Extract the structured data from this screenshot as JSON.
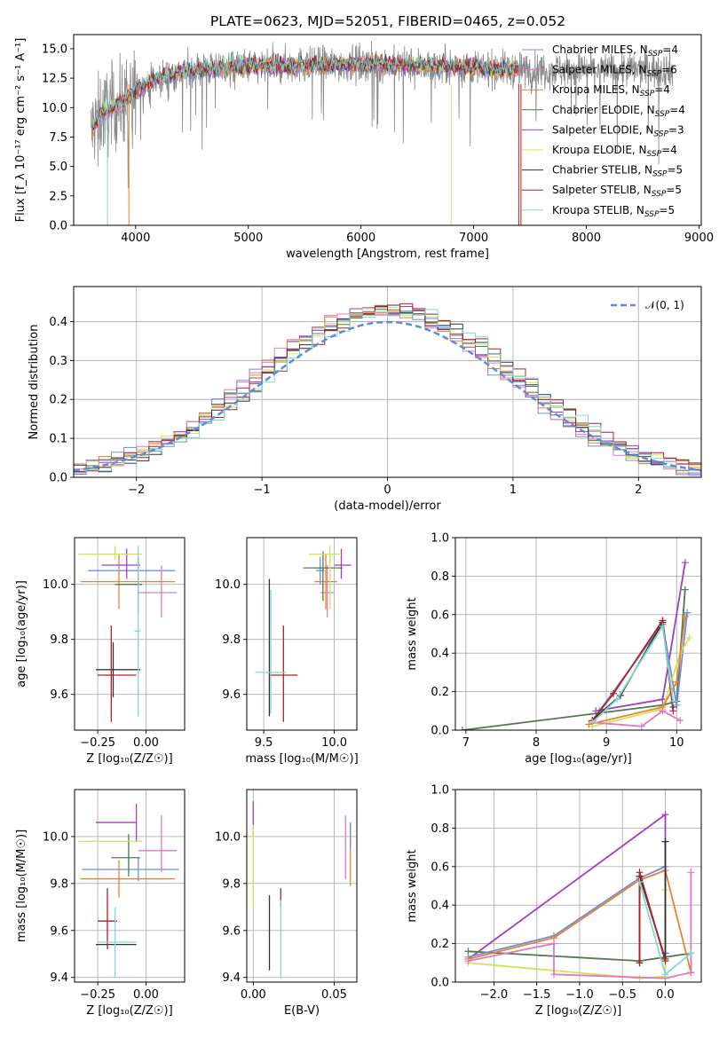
{
  "title": "PLATE=0623, MJD=52051, FIBERID=0465, z=0.052",
  "colors": {
    "Chabrier MILES": "#6b8fe0",
    "Salpeter MILES": "#e377c2",
    "Kroupa MILES": "#e8822e",
    "Chabrier ELODIE": "#4e7a4e",
    "Salpeter ELODIE": "#a23dc4",
    "Kroupa ELODIE": "#d4e05a",
    "Chabrier STELIB": "#333333",
    "Salpeter STELIB": "#b02020",
    "Kroupa STELIB": "#7fd8d8"
  },
  "legend": [
    {
      "label": "Chabrier MILES, N",
      "sub": "SSP",
      "eq": "=4",
      "series": "Chabrier MILES"
    },
    {
      "label": "Salpeter MILES, N",
      "sub": "SSP",
      "eq": "=6",
      "series": "Salpeter MILES"
    },
    {
      "label": "Kroupa MILES, N",
      "sub": "SSP",
      "eq": "=4",
      "series": "Kroupa MILES"
    },
    {
      "label": "Chabrier ELODIE, N",
      "sub": "SSP",
      "eq": "=4",
      "series": "Chabrier ELODIE"
    },
    {
      "label": "Salpeter ELODIE, N",
      "sub": "SSP",
      "eq": "=3",
      "series": "Salpeter ELODIE"
    },
    {
      "label": "Kroupa ELODIE, N",
      "sub": "SSP",
      "eq": "=4",
      "series": "Kroupa ELODIE"
    },
    {
      "label": "Chabrier STELIB, N",
      "sub": "SSP",
      "eq": "=5",
      "series": "Chabrier STELIB"
    },
    {
      "label": "Salpeter STELIB, N",
      "sub": "SSP",
      "eq": "=5",
      "series": "Salpeter STELIB"
    },
    {
      "label": "Kroupa STELIB, N",
      "sub": "SSP",
      "eq": "=5",
      "series": "Kroupa STELIB"
    }
  ],
  "chart_data": [
    {
      "id": "spectrum",
      "type": "line",
      "xlabel": "wavelength [Angstrom, rest frame]",
      "ylabel": "Flux [f_λ 10⁻¹⁷ erg cm⁻² s⁻¹ A⁻¹]",
      "xlim": [
        3450,
        9020
      ],
      "ylim": [
        0,
        16.2
      ],
      "xticks": [
        4000,
        5000,
        6000,
        7000,
        8000,
        9000
      ],
      "yticks": [
        0.0,
        2.5,
        5.0,
        7.5,
        10.0,
        12.5,
        15.0
      ],
      "data_wavelength_range": [
        3600,
        8770
      ],
      "continuum": {
        "x": [
          3600,
          3700,
          3800,
          3900,
          4000,
          4200,
          4500,
          5000,
          5500,
          6000,
          6500,
          7000,
          7400
        ],
        "y": [
          8.0,
          9.5,
          10.0,
          10.5,
          11.5,
          12.5,
          13.2,
          13.5,
          13.6,
          13.7,
          13.6,
          13.4,
          13.2
        ]
      }
    },
    {
      "id": "residuals",
      "type": "histogram",
      "xlabel": "(data-model)/error",
      "ylabel": "Normed distribution",
      "xlim": [
        -2.5,
        2.5
      ],
      "ylim": [
        0,
        0.49
      ],
      "xticks": [
        -2,
        -1,
        0,
        1,
        2
      ],
      "yticks": [
        0.0,
        0.1,
        0.2,
        0.3,
        0.4
      ],
      "reference_label": "𝒩(0, 1)",
      "bin_width": 0.1
    },
    {
      "id": "age_vs_Z",
      "type": "errorbar",
      "xlabel": "Z [log₁₀(Z/Z☉)]",
      "ylabel": "age  [log₁₀(age/yr)]",
      "xlim": [
        -0.37,
        0.2
      ],
      "ylim": [
        9.47,
        10.17
      ],
      "xticks": [
        -0.25,
        0.0
      ],
      "xticklabels": [
        "−0.25",
        "0.00"
      ],
      "yticks": [
        9.6,
        9.8,
        10.0
      ],
      "yticklabels": [
        "9.6",
        "9.8",
        "10.0"
      ],
      "points": [
        {
          "s": "Chabrier MILES",
          "x": -0.04,
          "xerr": [
            0.26,
            0.19
          ],
          "y": 10.05,
          "yerr": [
            0.05,
            0.05
          ]
        },
        {
          "s": "Salpeter MILES",
          "x": 0.08,
          "xerr": [
            0.12,
            0.08
          ],
          "y": 9.97,
          "yerr": [
            0.09,
            0.1
          ]
        },
        {
          "s": "Kroupa MILES",
          "x": -0.14,
          "xerr": [
            0.2,
            0.29
          ],
          "y": 10.01,
          "yerr": [
            0.1,
            0.1
          ]
        },
        {
          "s": "Chabrier ELODIE",
          "x": -0.04,
          "xerr": [
            0.12,
            0.02
          ],
          "y": 10.0,
          "yerr": [
            0.1,
            0.1
          ]
        },
        {
          "s": "Salpeter ELODIE",
          "x": -0.1,
          "xerr": [
            0.13,
            0.07
          ],
          "y": 10.07,
          "yerr": [
            0.05,
            0.06
          ]
        },
        {
          "s": "Kroupa ELODIE",
          "x": -0.16,
          "xerr": [
            0.19,
            0.14
          ],
          "y": 10.11,
          "yerr": [
            0.02,
            0.03
          ]
        },
        {
          "s": "Chabrier STELIB",
          "x": -0.17,
          "xerr": [
            0.09,
            0.14
          ],
          "y": 9.69,
          "yerr": [
            0.1,
            0.1
          ]
        },
        {
          "s": "Salpeter STELIB",
          "x": -0.18,
          "xerr": [
            0.07,
            0.13
          ],
          "y": 9.67,
          "yerr": [
            0.17,
            0.18
          ]
        },
        {
          "s": "Kroupa STELIB",
          "x": -0.04,
          "xerr": [
            0.02,
            0.01
          ],
          "y": 9.83,
          "yerr": [
            0.31,
            0.31
          ]
        }
      ]
    },
    {
      "id": "age_vs_mass",
      "type": "errorbar",
      "xlabel": "mass [log₁₀(M/M☉)]",
      "ylabel": "",
      "xlim": [
        9.38,
        10.16
      ],
      "ylim": [
        9.47,
        10.17
      ],
      "xticks": [
        9.5,
        10.0
      ],
      "xticklabels": [
        "9.5",
        "10.0"
      ],
      "yticks": [
        9.6,
        9.8,
        10.0
      ],
      "yticklabels": [
        "9.6",
        "9.8",
        "10.0"
      ],
      "points": [
        {
          "s": "Chabrier MILES",
          "x": 9.9,
          "xerr": [
            0.03,
            0.03
          ],
          "y": 10.05,
          "yerr": [
            0.05,
            0.05
          ]
        },
        {
          "s": "Salpeter MILES",
          "x": 9.95,
          "xerr": [
            0.05,
            0.05
          ],
          "y": 9.97,
          "yerr": [
            0.09,
            0.1
          ]
        },
        {
          "s": "Kroupa MILES",
          "x": 9.94,
          "xerr": [
            0.08,
            0.08
          ],
          "y": 10.01,
          "yerr": [
            0.1,
            0.1
          ]
        },
        {
          "s": "Chabrier ELODIE",
          "x": 9.92,
          "xerr": [
            0.14,
            0.14
          ],
          "y": 10.06,
          "yerr": [
            0.12,
            0.06
          ]
        },
        {
          "s": "Salpeter ELODIE",
          "x": 10.05,
          "xerr": [
            0.05,
            0.07
          ],
          "y": 10.07,
          "yerr": [
            0.05,
            0.06
          ]
        },
        {
          "s": "Kroupa ELODIE",
          "x": 9.97,
          "xerr": [
            0.15,
            0.07
          ],
          "y": 10.11,
          "yerr": [
            0.2,
            0.03
          ]
        },
        {
          "s": "Chabrier STELIB",
          "x": 9.54,
          "xerr": [
            0.0,
            0.0
          ],
          "y": 9.69,
          "yerr": [
            0.17,
            0.33
          ]
        },
        {
          "s": "Salpeter STELIB",
          "x": 9.64,
          "xerr": [
            0.1,
            0.1
          ],
          "y": 9.67,
          "yerr": [
            0.17,
            0.18
          ]
        },
        {
          "s": "Kroupa STELIB",
          "x": 9.55,
          "xerr": [
            0.11,
            0.11
          ],
          "y": 9.68,
          "yerr": [
            0.15,
            0.3
          ]
        }
      ]
    },
    {
      "id": "weight_vs_age",
      "type": "line",
      "xlabel": "age  [log₁₀(age/yr)]",
      "ylabel": "mass weight",
      "xlim": [
        6.85,
        10.35
      ],
      "ylim": [
        0,
        1.0
      ],
      "xticks": [
        7,
        8,
        9,
        10
      ],
      "yticks": [
        0.0,
        0.2,
        0.4,
        0.6,
        0.8,
        1.0
      ],
      "series": [
        {
          "s": "Salpeter ELODIE",
          "x": [
            8.85,
            9.8,
            10.12
          ],
          "y": [
            0.1,
            0.16,
            0.87
          ]
        },
        {
          "s": "Chabrier ELODIE",
          "x": [
            6.95,
            9.8,
            10.0,
            10.12
          ],
          "y": [
            0.0,
            0.13,
            0.15,
            0.73
          ]
        },
        {
          "s": "Chabrier MILES",
          "x": [
            8.9,
            9.8,
            10.0,
            10.15
          ],
          "y": [
            0.1,
            0.55,
            0.13,
            0.61
          ]
        },
        {
          "s": "Kroupa ELODIE",
          "x": [
            8.8,
            9.8,
            10.05,
            10.18
          ],
          "y": [
            0.02,
            0.11,
            0.4,
            0.48
          ]
        },
        {
          "s": "Kroupa MILES",
          "x": [
            8.75,
            9.8,
            10.0,
            10.12
          ],
          "y": [
            0.03,
            0.12,
            0.25,
            0.59
          ]
        },
        {
          "s": "Salpeter MILES",
          "x": [
            8.8,
            9.5,
            9.8,
            10.05
          ],
          "y": [
            0.04,
            0.02,
            0.1,
            0.05
          ]
        },
        {
          "s": "Chabrier STELIB",
          "x": [
            8.8,
            9.2,
            9.8,
            9.95
          ],
          "y": [
            0.05,
            0.18,
            0.56,
            0.12
          ]
        },
        {
          "s": "Salpeter STELIB",
          "x": [
            8.8,
            9.1,
            9.8,
            9.95
          ],
          "y": [
            0.05,
            0.19,
            0.57,
            0.1
          ]
        },
        {
          "s": "Kroupa STELIB",
          "x": [
            8.8,
            9.15,
            9.8,
            9.95
          ],
          "y": [
            0.04,
            0.16,
            0.54,
            0.15
          ]
        }
      ]
    },
    {
      "id": "mass_vs_Z",
      "type": "errorbar",
      "xlabel": "Z [log₁₀(Z/Z☉)]",
      "ylabel": "mass [log₁₀(M/M☉)]",
      "xlim": [
        -0.37,
        0.2
      ],
      "ylim": [
        9.38,
        10.2
      ],
      "xticks": [
        -0.25,
        0.0
      ],
      "xticklabels": [
        "−0.25",
        "0.00"
      ],
      "yticks": [
        9.4,
        9.6,
        9.8,
        10.0
      ],
      "yticklabels": [
        "9.4",
        "9.6",
        "9.8",
        "10.0"
      ],
      "points": [
        {
          "s": "Chabrier MILES",
          "x": -0.04,
          "xerr": [
            0.29,
            0.21
          ],
          "y": 9.86,
          "yerr": [
            0.05,
            0.05
          ]
        },
        {
          "s": "Salpeter MILES",
          "x": 0.08,
          "xerr": [
            0.12,
            0.08
          ],
          "y": 9.94,
          "yerr": [
            0.09,
            0.15
          ]
        },
        {
          "s": "Kroupa MILES",
          "x": -0.14,
          "xerr": [
            0.2,
            0.29
          ],
          "y": 9.82,
          "yerr": [
            0.08,
            0.08
          ]
        },
        {
          "s": "Chabrier ELODIE",
          "x": -0.09,
          "xerr": [
            0.09,
            0.06
          ],
          "y": 9.91,
          "yerr": [
            0.08,
            0.1
          ]
        },
        {
          "s": "Salpeter ELODIE",
          "x": -0.05,
          "xerr": [
            0.21,
            0.0
          ],
          "y": 10.06,
          "yerr": [
            0.08,
            0.08
          ]
        },
        {
          "s": "Kroupa ELODIE",
          "x": -0.16,
          "xerr": [
            0.19,
            0.14
          ],
          "y": 9.98,
          "yerr": [
            0.0,
            0.0
          ]
        },
        {
          "s": "Chabrier STELIB",
          "x": -0.1,
          "xerr": [
            0.16,
            0.05
          ],
          "y": 9.54,
          "yerr": [
            0.0,
            0.0
          ]
        },
        {
          "s": "Salpeter STELIB",
          "x": -0.2,
          "xerr": [
            0.05,
            0.05
          ],
          "y": 9.64,
          "yerr": [
            0.12,
            0.14
          ]
        },
        {
          "s": "Kroupa STELIB",
          "x": -0.16,
          "xerr": [
            0.09,
            0.11
          ],
          "y": 9.55,
          "yerr": [
            0.15,
            0.15
          ]
        }
      ]
    },
    {
      "id": "mass_vs_EBV",
      "type": "errorbar",
      "xlabel": "E(B-V)",
      "ylabel": "",
      "xlim": [
        -0.004,
        0.064
      ],
      "ylim": [
        9.38,
        10.2
      ],
      "xticks": [
        0.0,
        0.05
      ],
      "xticklabels": [
        "0.00",
        "0.05"
      ],
      "yticks": [
        9.4,
        9.6,
        9.8,
        10.0
      ],
      "yticklabels": [
        "9.4",
        "9.6",
        "9.8",
        "10.0"
      ],
      "points": [
        {
          "s": "Salpeter ELODIE",
          "x": 0.0,
          "xerr": [
            0,
            0
          ],
          "y": 10.05,
          "yerr": [
            0.05,
            0.1
          ]
        },
        {
          "s": "Kroupa ELODIE",
          "x": 0.0,
          "xerr": [
            0,
            0
          ],
          "y": 9.9,
          "yerr": [
            0.2,
            0.15
          ]
        },
        {
          "s": "Chabrier STELIB",
          "x": 0.01,
          "xerr": [
            0,
            0
          ],
          "y": 9.59,
          "yerr": [
            0.16,
            0.16
          ]
        },
        {
          "s": "Salpeter STELIB",
          "x": 0.017,
          "xerr": [
            0,
            0
          ],
          "y": 9.74,
          "yerr": [
            0.04,
            0.04
          ]
        },
        {
          "s": "Kroupa STELIB",
          "x": 0.017,
          "xerr": [
            0,
            0
          ],
          "y": 9.58,
          "yerr": [
            0.18,
            0.15
          ]
        },
        {
          "s": "Salpeter MILES",
          "x": 0.057,
          "xerr": [
            0,
            0
          ],
          "y": 9.96,
          "yerr": [
            0.14,
            0.13
          ]
        },
        {
          "s": "Kroupa MILES",
          "x": 0.06,
          "xerr": [
            0,
            0
          ],
          "y": 9.92,
          "yerr": [
            0.13,
            0.14
          ]
        },
        {
          "s": "Chabrier MILES",
          "x": 0.06,
          "xerr": [
            0,
            0
          ],
          "y": 10.0,
          "yerr": [
            0.05,
            0.06
          ]
        }
      ]
    },
    {
      "id": "weight_vs_Z",
      "type": "line",
      "xlabel": "Z [log₁₀(Z/Z☉)]",
      "ylabel": "mass weight",
      "xlim": [
        -2.45,
        0.42
      ],
      "ylim": [
        0,
        1.0
      ],
      "xticks": [
        -2.0,
        -1.5,
        -1.0,
        -0.5,
        0.0
      ],
      "xticklabels": [
        "−2.0",
        "−1.5",
        "−1.0",
        "−0.5",
        "0.0"
      ],
      "yticks": [
        0.0,
        0.2,
        0.4,
        0.6,
        0.8,
        1.0
      ],
      "series": [
        {
          "s": "Salpeter ELODIE",
          "x": [
            -2.3,
            0.0,
            0.0
          ],
          "y": [
            0.12,
            0.87,
            0.15
          ]
        },
        {
          "s": "Chabrier ELODIE",
          "x": [
            -2.3,
            -0.3,
            0.3,
            0.3
          ],
          "y": [
            0.16,
            0.11,
            0.15,
            0.05
          ]
        },
        {
          "s": "Chabrier MILES",
          "x": [
            -2.3,
            -1.3,
            -0.3,
            0.0,
            0.0
          ],
          "y": [
            0.13,
            0.24,
            0.54,
            0.6,
            0.12
          ]
        },
        {
          "s": "Kroupa MILES",
          "x": [
            -2.3,
            -1.3,
            -0.3,
            0.0,
            0.3
          ],
          "y": [
            0.12,
            0.23,
            0.53,
            0.58,
            0.05
          ]
        },
        {
          "s": "Kroupa ELODIE",
          "x": [
            -2.3,
            -0.3,
            0.0,
            0.0
          ],
          "y": [
            0.1,
            0.02,
            0.03,
            0.48
          ]
        },
        {
          "s": "Salpeter MILES",
          "x": [
            -2.3,
            -1.3,
            -1.3,
            0.0,
            0.3,
            0.3
          ],
          "y": [
            0.11,
            0.2,
            0.04,
            0.02,
            0.05,
            0.57
          ]
        },
        {
          "s": "Chabrier STELIB",
          "x": [
            -0.3,
            -0.3,
            0.0,
            0.0
          ],
          "y": [
            0.1,
            0.55,
            0.12,
            0.73
          ]
        },
        {
          "s": "Salpeter STELIB",
          "x": [
            -0.3,
            -0.3,
            0.0
          ],
          "y": [
            0.1,
            0.57,
            0.11
          ]
        },
        {
          "s": "Kroupa STELIB",
          "x": [
            -0.3,
            0.0,
            0.3
          ],
          "y": [
            0.52,
            0.04,
            0.15
          ]
        }
      ]
    }
  ]
}
